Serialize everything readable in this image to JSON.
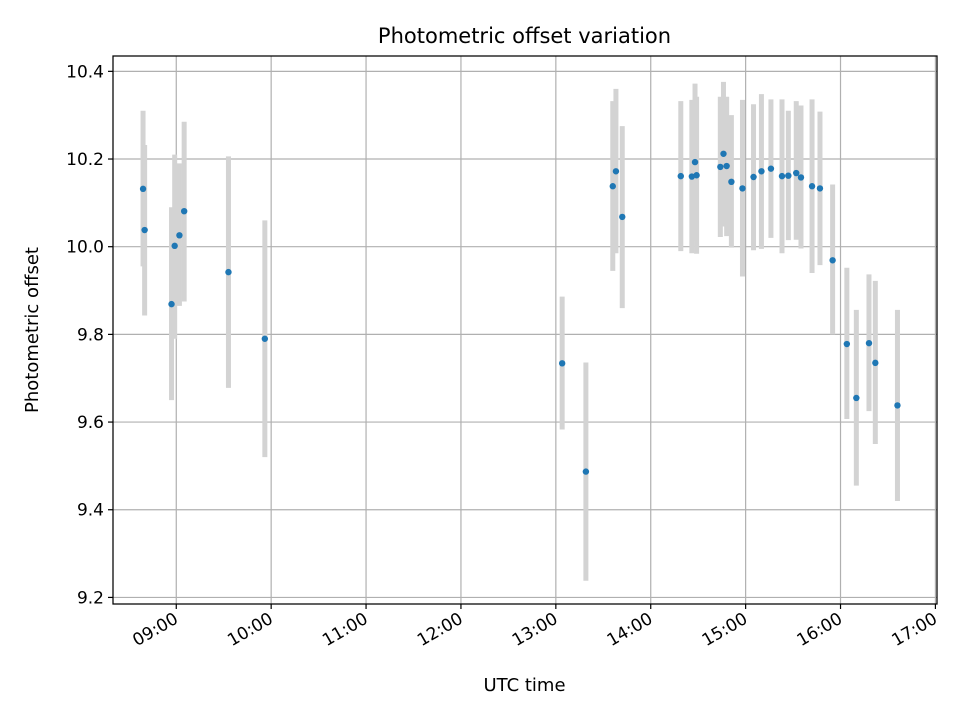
{
  "chart_data": {
    "type": "scatter",
    "title": "Photometric offset variation",
    "xlabel": "UTC time",
    "ylabel": "Photometric offset",
    "x_range_hours": [
      8.3333,
      17.0167
    ],
    "ylim": [
      9.185,
      10.435
    ],
    "grid": true,
    "x_ticks": [
      {
        "t": 9,
        "label": "09:00"
      },
      {
        "t": 10,
        "label": "10:00"
      },
      {
        "t": 11,
        "label": "11:00"
      },
      {
        "t": 12,
        "label": "12:00"
      },
      {
        "t": 13,
        "label": "13:00"
      },
      {
        "t": 14,
        "label": "14:00"
      },
      {
        "t": 15,
        "label": "15:00"
      },
      {
        "t": 16,
        "label": "16:00"
      },
      {
        "t": 17,
        "label": "17:00"
      }
    ],
    "y_ticks": [
      {
        "v": 9.2,
        "label": "9.2"
      },
      {
        "v": 9.4,
        "label": "9.4"
      },
      {
        "v": 9.6,
        "label": "9.6"
      },
      {
        "v": 9.8,
        "label": "9.8"
      },
      {
        "v": 10.0,
        "label": "10.0"
      },
      {
        "v": 10.2,
        "label": "10.2"
      },
      {
        "v": 10.4,
        "label": "10.4"
      }
    ],
    "colors": {
      "point": "#1f77b4",
      "errorbar": "#d3d3d3",
      "grid": "#b0b0b0"
    },
    "points": [
      {
        "time": "08:39",
        "y": 10.132,
        "low": 9.955,
        "high": 10.31
      },
      {
        "time": "08:40",
        "y": 10.038,
        "low": 9.843,
        "high": 10.232
      },
      {
        "time": "08:57",
        "y": 9.869,
        "low": 9.65,
        "high": 10.09
      },
      {
        "time": "08:59",
        "y": 10.002,
        "low": 9.79,
        "high": 10.21
      },
      {
        "time": "09:02",
        "y": 10.026,
        "low": 9.865,
        "high": 10.19
      },
      {
        "time": "09:05",
        "y": 10.081,
        "low": 9.875,
        "high": 10.285
      },
      {
        "time": "09:33",
        "y": 9.942,
        "low": 9.678,
        "high": 10.206
      },
      {
        "time": "09:56",
        "y": 9.79,
        "low": 9.52,
        "high": 10.06
      },
      {
        "time": "13:04",
        "y": 9.734,
        "low": 9.583,
        "high": 9.886
      },
      {
        "time": "13:19",
        "y": 9.487,
        "low": 9.238,
        "high": 9.736
      },
      {
        "time": "13:36",
        "y": 10.138,
        "low": 9.945,
        "high": 10.332
      },
      {
        "time": "13:38",
        "y": 10.172,
        "low": 9.985,
        "high": 10.36
      },
      {
        "time": "13:42",
        "y": 10.068,
        "low": 9.86,
        "high": 10.275
      },
      {
        "time": "14:19",
        "y": 10.161,
        "low": 9.99,
        "high": 10.332
      },
      {
        "time": "14:26",
        "y": 10.16,
        "low": 9.985,
        "high": 10.335
      },
      {
        "time": "14:28",
        "y": 10.193,
        "low": 10.012,
        "high": 10.372
      },
      {
        "time": "14:29",
        "y": 10.163,
        "low": 9.984,
        "high": 10.342
      },
      {
        "time": "14:44",
        "y": 10.182,
        "low": 10.022,
        "high": 10.342
      },
      {
        "time": "14:46",
        "y": 10.212,
        "low": 10.046,
        "high": 10.376
      },
      {
        "time": "14:48",
        "y": 10.184,
        "low": 10.024,
        "high": 10.342
      },
      {
        "time": "14:51",
        "y": 10.148,
        "low": 9.998,
        "high": 10.3
      },
      {
        "time": "14:58",
        "y": 10.133,
        "low": 9.932,
        "high": 10.335
      },
      {
        "time": "15:05",
        "y": 10.159,
        "low": 9.992,
        "high": 10.325
      },
      {
        "time": "15:10",
        "y": 10.172,
        "low": 9.995,
        "high": 10.348
      },
      {
        "time": "15:16",
        "y": 10.178,
        "low": 10.02,
        "high": 10.336
      },
      {
        "time": "15:23",
        "y": 10.161,
        "low": 9.985,
        "high": 10.336
      },
      {
        "time": "15:27",
        "y": 10.162,
        "low": 10.015,
        "high": 10.31
      },
      {
        "time": "15:32",
        "y": 10.168,
        "low": 10.016,
        "high": 10.332
      },
      {
        "time": "15:35",
        "y": 10.158,
        "low": 9.996,
        "high": 10.322
      },
      {
        "time": "15:42",
        "y": 10.138,
        "low": 9.94,
        "high": 10.336
      },
      {
        "time": "15:47",
        "y": 10.133,
        "low": 9.958,
        "high": 10.308
      },
      {
        "time": "15:55",
        "y": 9.969,
        "low": 9.8,
        "high": 10.142
      },
      {
        "time": "16:04",
        "y": 9.778,
        "low": 9.607,
        "high": 9.952
      },
      {
        "time": "16:10",
        "y": 9.655,
        "low": 9.455,
        "high": 9.856
      },
      {
        "time": "16:18",
        "y": 9.78,
        "low": 9.625,
        "high": 9.937
      },
      {
        "time": "16:22",
        "y": 9.735,
        "low": 9.55,
        "high": 9.922
      },
      {
        "time": "16:36",
        "y": 9.638,
        "low": 9.42,
        "high": 9.856
      }
    ]
  }
}
